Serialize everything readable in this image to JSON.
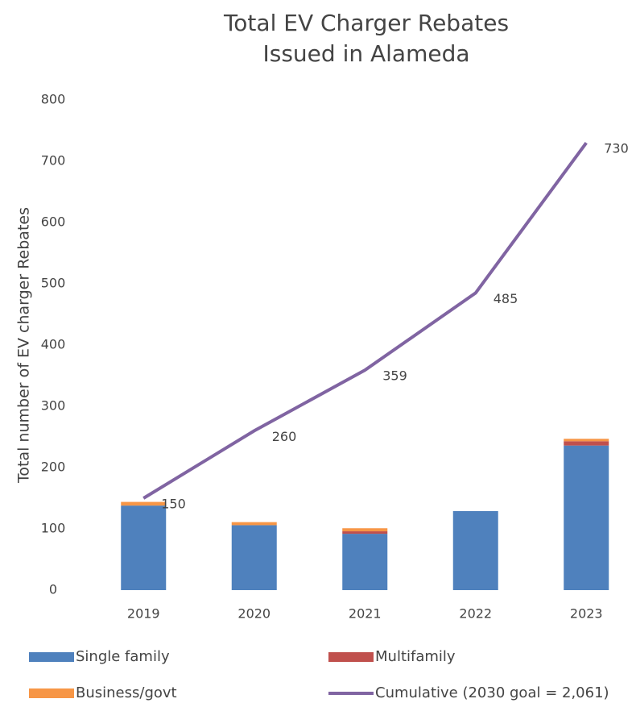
{
  "chart_data": {
    "type": "bar",
    "title": "Total EV Charger Rebates Issued in Alameda",
    "y_label": "Total number of EV charger Rebates",
    "categories": [
      "2019",
      "2020",
      "2021",
      "2022",
      "2023"
    ],
    "series": [
      {
        "name": "Single family",
        "color": "#4f81bd",
        "type": "bar",
        "values": [
          138,
          106,
          92,
          129,
          236
        ]
      },
      {
        "name": "Multifamily",
        "color": "#c0504d",
        "type": "bar",
        "values": [
          0,
          0,
          4,
          0,
          7
        ]
      },
      {
        "name": "Business/govt",
        "color": "#f79646",
        "type": "bar",
        "values": [
          6,
          5,
          5,
          0,
          4
        ]
      },
      {
        "name": "Cumulative (2030 goal = 2,061)",
        "color": "#8064a2",
        "type": "line",
        "values": [
          150,
          260,
          359,
          485,
          730
        ]
      }
    ],
    "ylim": [
      0,
      800
    ],
    "yticks": [
      0,
      100,
      200,
      300,
      400,
      500,
      600,
      700,
      800
    ],
    "grid": false,
    "legend": "bottom"
  }
}
